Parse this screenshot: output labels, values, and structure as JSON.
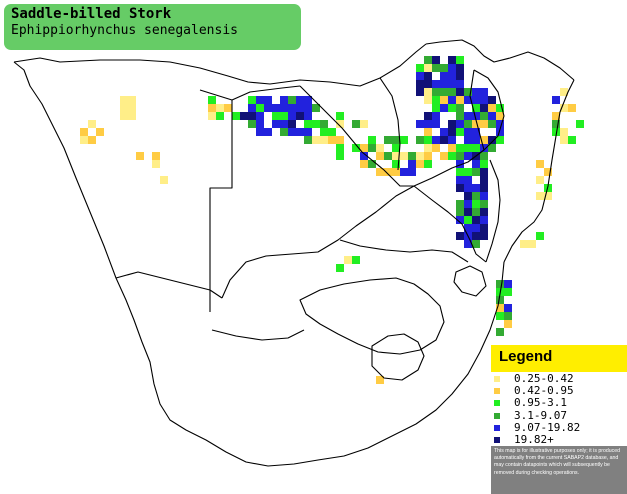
{
  "title": {
    "common_name": "Saddle-billed Stork",
    "scientific_name": "Ephippiorhynchus senegalensis"
  },
  "legend": {
    "heading": "Legend",
    "items": [
      {
        "label": "0.25-0.42",
        "color": "#ffee88"
      },
      {
        "label": "0.42-0.95",
        "color": "#ffcc44"
      },
      {
        "label": "0.95-3.1",
        "color": "#22ee22"
      },
      {
        "label": "3.1-9.07",
        "color": "#33aa33"
      },
      {
        "label": "9.07-19.82",
        "color": "#2222dd"
      },
      {
        "label": "19.82+",
        "color": "#111177"
      }
    ],
    "note": "This map is for illustrative purposes only; it is produced automatically from the current SABAP2 database, and may contain datapoints which will subsequently be removed during checking operations."
  },
  "colors": {
    "title_bg": "#66cc66",
    "legend_header": "#ffee00",
    "note_bg": "#808080",
    "border_lines": "#000000"
  }
}
